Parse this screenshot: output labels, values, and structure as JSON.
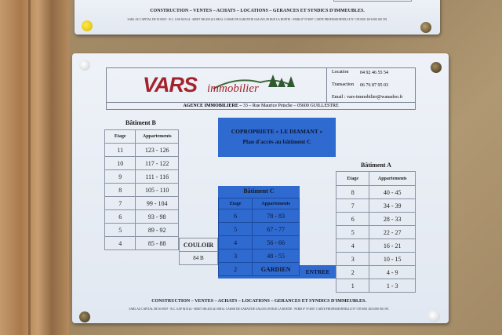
{
  "top_sign": {
    "services": "CONSTRUCTION – VENTES – ACHATS – LOCATIONS – GERANCES ET SYNDICS D'IMMEUBLES.",
    "legal": "SARL AU CAPITAL DE 50 000 F - R.C. GAP 84 B 24 - SIRET 386 450 241 00014. CAISSE DE GARANTIE GALIAN, 89 RUE LA BOETIE - PARIS 8° N°4007. CARTE PROFESSIONNELLE N° C95 0001 2016 000 010 591"
  },
  "header": {
    "logo_text": "VARS",
    "logo_subtext": "immobilier",
    "location_label": "Location",
    "location_phone": "04 92 46 55 54",
    "transaction_label": "Transaction",
    "transaction_phone": "06 76 87 95 03",
    "email": "Email : vars-immobilier@wanadoo.fr",
    "agency_name": "AGENCE  IMMOBILIERE –",
    "agency_address": "33 – Rue Maurice Petsche – 05600  GUILLESTRE"
  },
  "title": {
    "line1": "COPROPRIETE « LE DIAMANT »",
    "line2": "Plan d'accès au bâtiment C"
  },
  "colors": {
    "blue": "#2f6ad0",
    "logo_red": "#a3232c",
    "logo_green": "#3f6b3a"
  },
  "batiment_b": {
    "title": "Bâtiment B",
    "headers": [
      "Etage",
      "Appartements"
    ],
    "rows": [
      [
        "11",
        "123 - 126"
      ],
      [
        "10",
        "117 - 122"
      ],
      [
        "9",
        "111 - 116"
      ],
      [
        "8",
        "105 - 110"
      ],
      [
        "7",
        "99 - 104"
      ],
      [
        "6",
        "93 - 98"
      ],
      [
        "5",
        "89 - 92"
      ],
      [
        "4",
        "85 - 88"
      ]
    ]
  },
  "couloir": {
    "label": "COULOIR",
    "number": "84 B"
  },
  "batiment_c": {
    "title": "Bâtiment C",
    "headers": [
      "Etage",
      "Appartements"
    ],
    "rows": [
      [
        "6",
        "78 - 83"
      ],
      [
        "5",
        "67 - 77"
      ],
      [
        "4",
        "56 - 66"
      ],
      [
        "3",
        "48 - 55"
      ],
      [
        "2",
        "GARDIEN"
      ]
    ]
  },
  "entree": "ENTREE",
  "batiment_a": {
    "title": "Bâtiment A",
    "headers": [
      "Etage",
      "Appartements"
    ],
    "rows": [
      [
        "8",
        "40 - 45"
      ],
      [
        "7",
        "34 - 39"
      ],
      [
        "6",
        "28 - 33"
      ],
      [
        "5",
        "22 - 27"
      ],
      [
        "4",
        "16 - 21"
      ],
      [
        "3",
        "10 - 15"
      ],
      [
        "2",
        "4 - 9"
      ],
      [
        "1",
        "1 - 3"
      ]
    ]
  },
  "footer": {
    "services": "CONSTRUCTION – VENTES – ACHATS – LOCATIONS – GERANCES ET SYNDICS D'IMMEUBLES.",
    "legal": "SARL AU CAPITAL DE 50 000 F - R.C. GAP 84 B 24 - SIRET 386 450 241 00014. CAISSE DE GARANTIE GALIAN, 89 RUE LA BOETIE - PARIS 8° N°4007. CARTE PROFESSIONNELLE N° C95 0001 2016 000 010 591"
  }
}
